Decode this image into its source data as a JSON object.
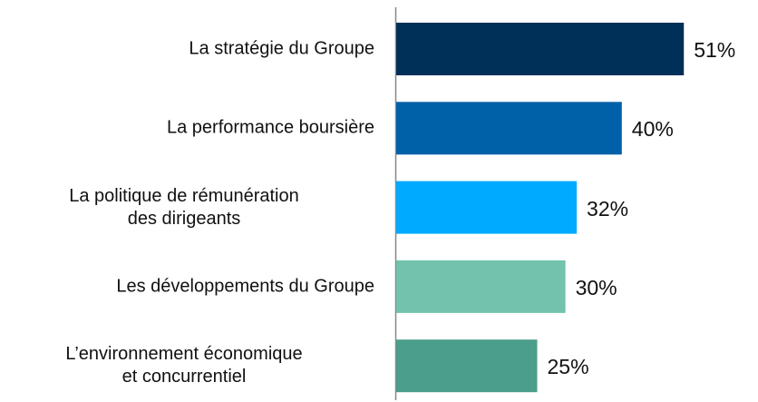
{
  "chart_data": {
    "type": "bar",
    "orientation": "horizontal",
    "categories": [
      "La stratégie du Groupe",
      "La performance boursière",
      "La politique de rémunération\ndes dirigeants",
      "Les développements du Groupe",
      "L’environnement économique\net concurrentiel"
    ],
    "values": [
      51,
      40,
      32,
      30,
      25
    ],
    "value_labels": [
      "51%",
      "40%",
      "32%",
      "30%",
      "25%"
    ],
    "colors": [
      "#003057",
      "#0060a8",
      "#00aaff",
      "#72c2ad",
      "#4a9e8a"
    ]
  }
}
